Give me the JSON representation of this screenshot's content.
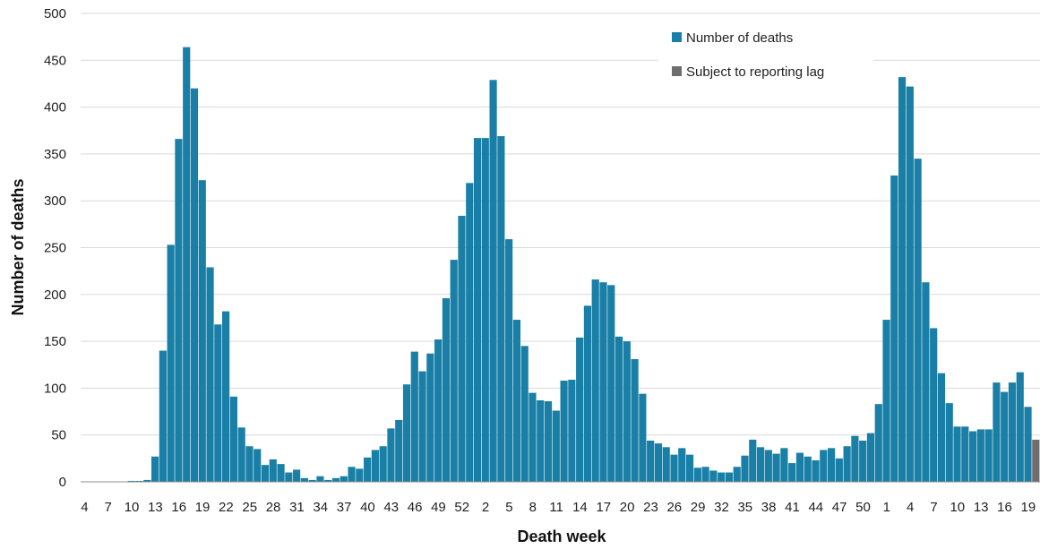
{
  "chart_data": {
    "type": "bar",
    "xlabel": "Death week",
    "ylabel": "Number of deaths",
    "ylim": [
      0,
      500
    ],
    "yticks": [
      0,
      50,
      100,
      150,
      200,
      250,
      300,
      350,
      400,
      450,
      500
    ],
    "grid": "horizontal",
    "legend_position": "top-right",
    "categories": [
      "4",
      "5",
      "6",
      "7",
      "8",
      "9",
      "10",
      "11",
      "12",
      "13",
      "14",
      "15",
      "16",
      "17",
      "18",
      "19",
      "20",
      "21",
      "22",
      "23",
      "24",
      "25",
      "26",
      "27",
      "28",
      "29",
      "30",
      "31",
      "32",
      "33",
      "34",
      "35",
      "36",
      "37",
      "38",
      "39",
      "40",
      "41",
      "42",
      "43",
      "44",
      "45",
      "46",
      "47",
      "48",
      "49",
      "50",
      "51",
      "52",
      "53",
      "1",
      "2",
      "3",
      "4",
      "5",
      "6",
      "7",
      "8",
      "9",
      "10",
      "11",
      "12",
      "13",
      "14",
      "15",
      "16",
      "17",
      "18",
      "19",
      "20",
      "21",
      "22",
      "23",
      "24",
      "25",
      "26",
      "27",
      "28",
      "29",
      "30",
      "31",
      "32",
      "33",
      "34",
      "35",
      "36",
      "37",
      "38",
      "39",
      "40",
      "41",
      "42",
      "43",
      "44",
      "45",
      "46",
      "47",
      "48",
      "49",
      "50",
      "51",
      "52",
      "1",
      "2",
      "3",
      "4",
      "5",
      "6",
      "7",
      "8",
      "9",
      "10",
      "11",
      "12",
      "13",
      "14",
      "15",
      "16",
      "17",
      "18",
      "19",
      "20"
    ],
    "tick_labels": [
      "4",
      "7",
      "10",
      "13",
      "16",
      "19",
      "22",
      "25",
      "28",
      "31",
      "34",
      "37",
      "40",
      "43",
      "46",
      "49",
      "52",
      "2",
      "5",
      "8",
      "11",
      "14",
      "17",
      "20",
      "23",
      "26",
      "29",
      "32",
      "35",
      "38",
      "41",
      "44",
      "47",
      "50",
      "1",
      "4",
      "7",
      "10",
      "13",
      "16",
      "19"
    ],
    "series": [
      {
        "name": "Number of deaths",
        "color": "#1a7fa6",
        "values": [
          0,
          0,
          0,
          0,
          0,
          0,
          1,
          1,
          2,
          27,
          140,
          253,
          366,
          464,
          420,
          322,
          229,
          168,
          182,
          91,
          58,
          38,
          35,
          18,
          24,
          19,
          10,
          13,
          4,
          2,
          6,
          2,
          4,
          6,
          16,
          14,
          26,
          34,
          38,
          57,
          66,
          104,
          139,
          118,
          137,
          152,
          196,
          237,
          284,
          319,
          367,
          367,
          429,
          369,
          259,
          173,
          145,
          95,
          87,
          86,
          76,
          108,
          109,
          154,
          188,
          216,
          213,
          210,
          155,
          150,
          131,
          94,
          44,
          41,
          37,
          29,
          36,
          29,
          15,
          16,
          12,
          10,
          10,
          16,
          28,
          45,
          37,
          34,
          30,
          36,
          20,
          31,
          27,
          23,
          34,
          36,
          25,
          38,
          49,
          44,
          52,
          83,
          173,
          327,
          432,
          422,
          345,
          213,
          164,
          116,
          84,
          59,
          59,
          54,
          56,
          56,
          106,
          96,
          106,
          117,
          80,
          null
        ]
      },
      {
        "name": "Subject to reporting lag",
        "color": "#6e6e6e",
        "values": [
          null,
          null,
          null,
          null,
          null,
          null,
          null,
          null,
          null,
          null,
          null,
          null,
          null,
          null,
          null,
          null,
          null,
          null,
          null,
          null,
          null,
          null,
          null,
          null,
          null,
          null,
          null,
          null,
          null,
          null,
          null,
          null,
          null,
          null,
          null,
          null,
          null,
          null,
          null,
          null,
          null,
          null,
          null,
          null,
          null,
          null,
          null,
          null,
          null,
          null,
          null,
          null,
          null,
          null,
          null,
          null,
          null,
          null,
          null,
          null,
          null,
          null,
          null,
          null,
          null,
          null,
          null,
          null,
          null,
          null,
          null,
          null,
          null,
          null,
          null,
          null,
          null,
          null,
          null,
          null,
          null,
          null,
          null,
          null,
          null,
          null,
          null,
          null,
          null,
          null,
          null,
          null,
          null,
          null,
          null,
          null,
          null,
          null,
          null,
          null,
          null,
          null,
          null,
          null,
          null,
          null,
          null,
          null,
          null,
          null,
          null,
          null,
          null,
          null,
          null,
          null,
          null,
          null,
          null,
          null,
          null,
          45
        ]
      }
    ]
  }
}
